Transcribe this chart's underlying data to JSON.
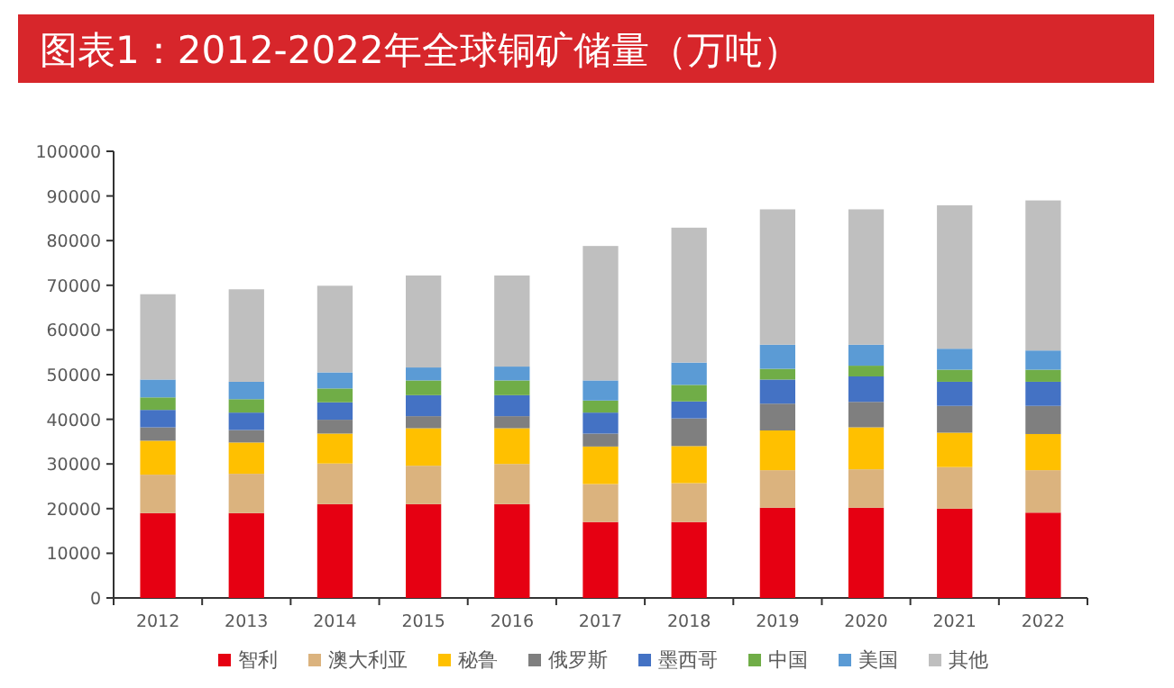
{
  "chart_data": {
    "type": "bar",
    "title": "图表1：2012-2022年全球铜矿储量（万吨）",
    "categories": [
      "2012",
      "2013",
      "2014",
      "2015",
      "2016",
      "2017",
      "2018",
      "2019",
      "2020",
      "2021",
      "2022"
    ],
    "stacked": true,
    "legend": "bottom",
    "ylim": [
      0,
      100000
    ],
    "yticks": [
      0,
      10000,
      20000,
      30000,
      40000,
      50000,
      60000,
      70000,
      80000,
      90000,
      100000
    ],
    "series": [
      {
        "name": "智利",
        "color": "#e60012",
        "values": [
          19000,
          19000,
          21000,
          21000,
          21000,
          17000,
          17000,
          20200,
          20200,
          20000,
          19100
        ]
      },
      {
        "name": "澳大利亚",
        "color": "#dbb37e",
        "values": [
          8600,
          8800,
          9100,
          8600,
          9000,
          8500,
          8700,
          8400,
          8600,
          9300,
          9500
        ]
      },
      {
        "name": "秘鲁",
        "color": "#ffc000",
        "values": [
          7600,
          7000,
          6700,
          8400,
          8000,
          8400,
          8300,
          8900,
          9400,
          7700,
          8100
        ]
      },
      {
        "name": "俄罗斯",
        "color": "#7f7f7f",
        "values": [
          3000,
          2800,
          3100,
          2700,
          2700,
          2900,
          6200,
          6000,
          5700,
          6000,
          6300
        ]
      },
      {
        "name": "墨西哥",
        "color": "#4472c4",
        "values": [
          3900,
          3900,
          3900,
          4700,
          4700,
          4700,
          3800,
          5400,
          5700,
          5400,
          5400
        ]
      },
      {
        "name": "中国",
        "color": "#70ad47",
        "values": [
          2800,
          3000,
          3100,
          3300,
          3300,
          2700,
          3700,
          2400,
          2400,
          2700,
          2700
        ]
      },
      {
        "name": "美国",
        "color": "#5b9bd5",
        "values": [
          4000,
          3900,
          3600,
          2900,
          3100,
          4500,
          5000,
          5400,
          4700,
          4700,
          4300
        ]
      },
      {
        "name": "其他",
        "color": "#bfbfbf",
        "values": [
          19100,
          20700,
          19400,
          20600,
          20400,
          30100,
          30200,
          30300,
          30300,
          32100,
          33600
        ]
      }
    ]
  }
}
